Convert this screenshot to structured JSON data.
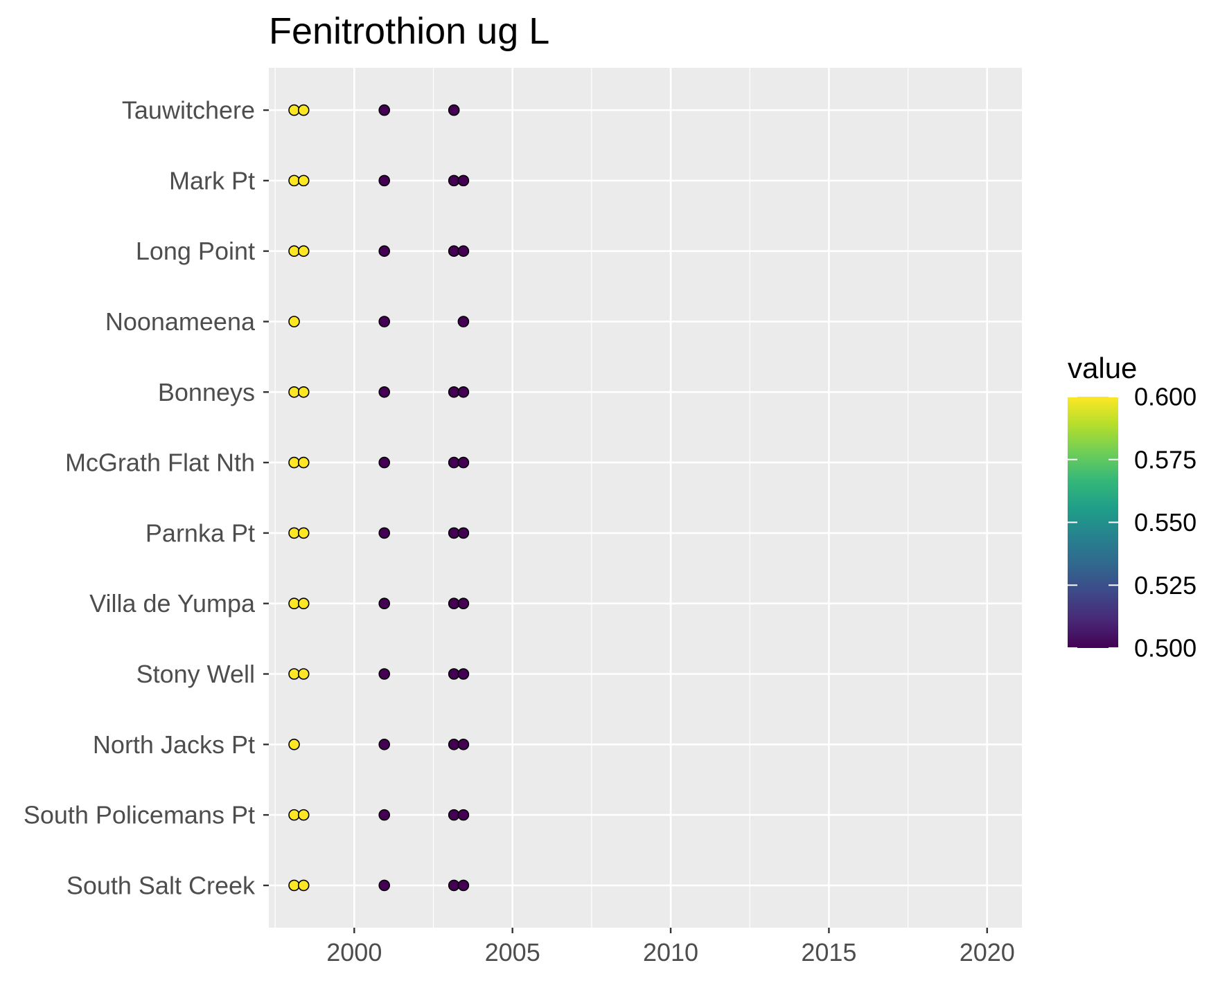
{
  "chart_data": {
    "type": "scatter",
    "title": "Fenitrothion ug L",
    "xlabel": "",
    "ylabel": "",
    "xlim": [
      1997.3,
      2021.1
    ],
    "x_ticks": [
      2000,
      2005,
      2010,
      2015,
      2020
    ],
    "sites": [
      "Tauwitchere",
      "Mark Pt",
      "Long Point",
      "Noonameena",
      "Bonneys",
      "McGrath Flat Nth",
      "Parnka Pt",
      "Villa de Yumpa",
      "Stony Well",
      "North Jacks Pt",
      "South Policemans Pt",
      "South Salt Creek"
    ],
    "points": [
      {
        "site": "Tauwitchere",
        "x": 1998.1,
        "value": 0.6
      },
      {
        "site": "Tauwitchere",
        "x": 1998.4,
        "value": 0.6
      },
      {
        "site": "Tauwitchere",
        "x": 2000.95,
        "value": 0.5
      },
      {
        "site": "Tauwitchere",
        "x": 2003.15,
        "value": 0.5
      },
      {
        "site": "Mark Pt",
        "x": 1998.1,
        "value": 0.6
      },
      {
        "site": "Mark Pt",
        "x": 1998.4,
        "value": 0.6
      },
      {
        "site": "Mark Pt",
        "x": 2000.95,
        "value": 0.5
      },
      {
        "site": "Mark Pt",
        "x": 2003.15,
        "value": 0.5
      },
      {
        "site": "Mark Pt",
        "x": 2003.45,
        "value": 0.5
      },
      {
        "site": "Long Point",
        "x": 1998.1,
        "value": 0.6
      },
      {
        "site": "Long Point",
        "x": 1998.4,
        "value": 0.6
      },
      {
        "site": "Long Point",
        "x": 2000.95,
        "value": 0.5
      },
      {
        "site": "Long Point",
        "x": 2003.15,
        "value": 0.5
      },
      {
        "site": "Long Point",
        "x": 2003.45,
        "value": 0.5
      },
      {
        "site": "Noonameena",
        "x": 1998.1,
        "value": 0.6
      },
      {
        "site": "Noonameena",
        "x": 2000.95,
        "value": 0.5
      },
      {
        "site": "Noonameena",
        "x": 2003.45,
        "value": 0.5
      },
      {
        "site": "Bonneys",
        "x": 1998.1,
        "value": 0.6
      },
      {
        "site": "Bonneys",
        "x": 1998.4,
        "value": 0.6
      },
      {
        "site": "Bonneys",
        "x": 2000.95,
        "value": 0.5
      },
      {
        "site": "Bonneys",
        "x": 2003.15,
        "value": 0.5
      },
      {
        "site": "Bonneys",
        "x": 2003.45,
        "value": 0.5
      },
      {
        "site": "McGrath Flat Nth",
        "x": 1998.1,
        "value": 0.6
      },
      {
        "site": "McGrath Flat Nth",
        "x": 1998.4,
        "value": 0.6
      },
      {
        "site": "McGrath Flat Nth",
        "x": 2000.95,
        "value": 0.5
      },
      {
        "site": "McGrath Flat Nth",
        "x": 2003.15,
        "value": 0.5
      },
      {
        "site": "McGrath Flat Nth",
        "x": 2003.45,
        "value": 0.5
      },
      {
        "site": "Parnka Pt",
        "x": 1998.1,
        "value": 0.6
      },
      {
        "site": "Parnka Pt",
        "x": 1998.4,
        "value": 0.6
      },
      {
        "site": "Parnka Pt",
        "x": 2000.95,
        "value": 0.5
      },
      {
        "site": "Parnka Pt",
        "x": 2003.15,
        "value": 0.5
      },
      {
        "site": "Parnka Pt",
        "x": 2003.45,
        "value": 0.5
      },
      {
        "site": "Villa de Yumpa",
        "x": 1998.1,
        "value": 0.6
      },
      {
        "site": "Villa de Yumpa",
        "x": 1998.4,
        "value": 0.6
      },
      {
        "site": "Villa de Yumpa",
        "x": 2000.95,
        "value": 0.5
      },
      {
        "site": "Villa de Yumpa",
        "x": 2003.15,
        "value": 0.5
      },
      {
        "site": "Villa de Yumpa",
        "x": 2003.45,
        "value": 0.5
      },
      {
        "site": "Stony Well",
        "x": 1998.1,
        "value": 0.6
      },
      {
        "site": "Stony Well",
        "x": 1998.4,
        "value": 0.6
      },
      {
        "site": "Stony Well",
        "x": 2000.95,
        "value": 0.5
      },
      {
        "site": "Stony Well",
        "x": 2003.15,
        "value": 0.5
      },
      {
        "site": "Stony Well",
        "x": 2003.45,
        "value": 0.5
      },
      {
        "site": "North Jacks Pt",
        "x": 1998.1,
        "value": 0.6
      },
      {
        "site": "North Jacks Pt",
        "x": 2000.95,
        "value": 0.5
      },
      {
        "site": "North Jacks Pt",
        "x": 2003.15,
        "value": 0.5
      },
      {
        "site": "North Jacks Pt",
        "x": 2003.45,
        "value": 0.5
      },
      {
        "site": "South Policemans Pt",
        "x": 1998.1,
        "value": 0.6
      },
      {
        "site": "South Policemans Pt",
        "x": 1998.4,
        "value": 0.6
      },
      {
        "site": "South Policemans Pt",
        "x": 2000.95,
        "value": 0.5
      },
      {
        "site": "South Policemans Pt",
        "x": 2003.15,
        "value": 0.5
      },
      {
        "site": "South Policemans Pt",
        "x": 2003.45,
        "value": 0.5
      },
      {
        "site": "South Salt Creek",
        "x": 1998.1,
        "value": 0.6
      },
      {
        "site": "South Salt Creek",
        "x": 1998.4,
        "value": 0.6
      },
      {
        "site": "South Salt Creek",
        "x": 2000.95,
        "value": 0.5
      },
      {
        "site": "South Salt Creek",
        "x": 2003.15,
        "value": 0.5
      },
      {
        "site": "South Salt Creek",
        "x": 2003.45,
        "value": 0.5
      }
    ],
    "legend": {
      "title": "value",
      "placement": "right",
      "ticks": [
        0.6,
        0.575,
        0.55,
        0.525,
        0.5
      ],
      "tick_labels": [
        "0.600",
        "0.575",
        "0.550",
        "0.525",
        "0.500"
      ],
      "range": [
        0.5,
        0.6
      ]
    },
    "grid": true,
    "colors": {
      "panel_background": "#ebebeb",
      "grid_major": "#ffffff",
      "low": "#440154",
      "high": "#fde725",
      "point_outline": "#000000",
      "axis_tick": "#333333"
    },
    "viridis_stops": [
      "#440154",
      "#482878",
      "#3e4989",
      "#31688e",
      "#26828e",
      "#1f9e89",
      "#35b779",
      "#6ece58",
      "#b5de2b",
      "#fde725"
    ]
  }
}
